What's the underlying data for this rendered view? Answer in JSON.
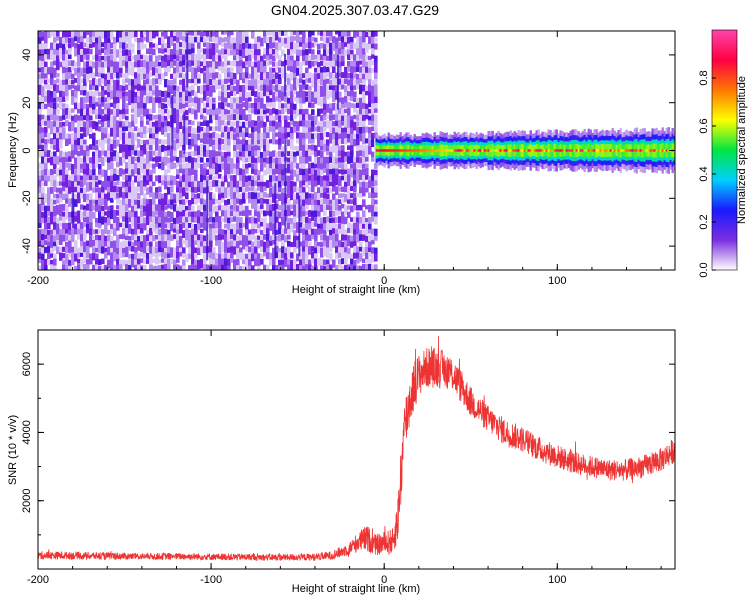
{
  "title": "GN04.2025.307.03.47.G29",
  "chart_data": [
    {
      "type": "heatmap",
      "xlabel": "Height of straight line (km)",
      "ylabel": "Frequency (Hz)",
      "xlim": [
        -200,
        168
      ],
      "ylim": [
        -50,
        50
      ],
      "x_ticks": [
        "-200",
        "-100",
        "0",
        "100"
      ],
      "y_ticks": [
        "40",
        "20",
        "0",
        "-20",
        "-40"
      ],
      "noise_region_x": [
        -200,
        -5
      ],
      "signal_band_x": [
        -5,
        168
      ],
      "signal_band_center_hz": 0,
      "signal_band_halfwidth_hz": 3,
      "colorbar": {
        "label": "Normalized spectral amplitude",
        "range": [
          0,
          1
        ],
        "ticks": [
          "0.0",
          "0.2",
          "0.4",
          "0.6",
          "0.8"
        ],
        "colors": [
          "#ffffff",
          "#7b2fe0",
          "#1a1aff",
          "#00d0ff",
          "#00e640",
          "#ffff00",
          "#ff7700",
          "#ff0044",
          "#ff44aa"
        ]
      }
    },
    {
      "type": "line",
      "xlabel": "Height of straight line (km)",
      "ylabel": "SNR (10 * v/v)",
      "xlim": [
        -200,
        168
      ],
      "ylim": [
        0,
        7000
      ],
      "x_ticks": [
        "-200",
        "-100",
        "0",
        "100"
      ],
      "y_ticks": [
        "6000",
        "4000",
        "2000"
      ],
      "color": "#ee3333",
      "x": [
        -200,
        -180,
        -160,
        -140,
        -120,
        -100,
        -80,
        -60,
        -40,
        -30,
        -20,
        -15,
        -10,
        -5,
        5,
        8,
        10,
        12,
        15,
        18,
        22,
        25,
        30,
        35,
        40,
        45,
        50,
        60,
        70,
        80,
        90,
        100,
        110,
        120,
        130,
        140,
        150,
        160,
        168
      ],
      "y": [
        400,
        390,
        380,
        370,
        370,
        360,
        350,
        340,
        350,
        400,
        600,
        800,
        900,
        700,
        800,
        1500,
        3000,
        4200,
        5000,
        5500,
        5800,
        5900,
        5900,
        5850,
        5700,
        5300,
        4900,
        4400,
        4000,
        3800,
        3500,
        3300,
        3100,
        3000,
        2900,
        2900,
        3000,
        3200,
        3500
      ],
      "noise_amplitude": [
        120,
        110,
        110,
        100,
        100,
        100,
        100,
        100,
        110,
        130,
        200,
        300,
        400,
        300,
        400,
        700,
        1000,
        900,
        800,
        700,
        600,
        600,
        600,
        550,
        500,
        500,
        450,
        400,
        400,
        380,
        360,
        350,
        330,
        320,
        320,
        320,
        330,
        350,
        380
      ]
    }
  ]
}
